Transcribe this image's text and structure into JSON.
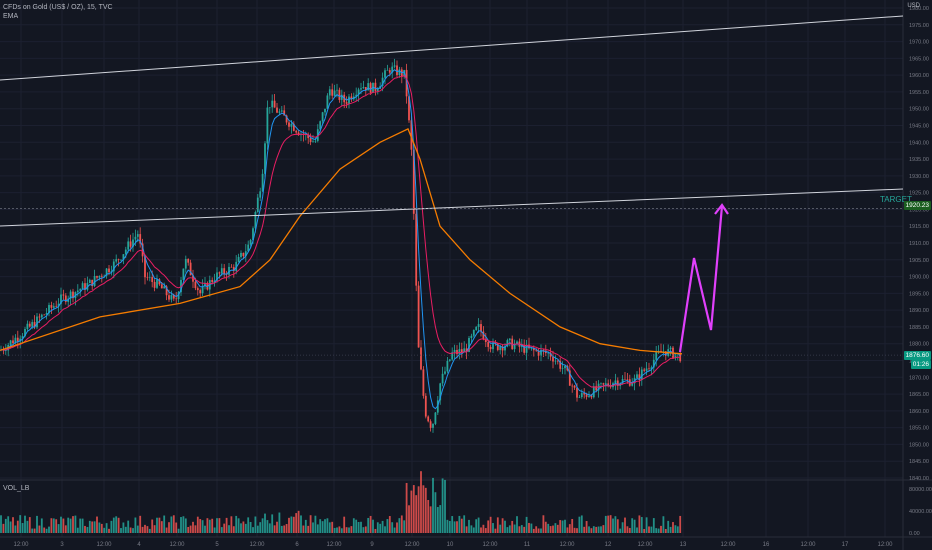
{
  "legend": {
    "symbol_line": "CFDs on Gold (US$ / OZ), 15, TVC",
    "indicator": "EMA",
    "volume_label": "VOL_LB"
  },
  "currency": "USD",
  "colors": {
    "background": "#131722",
    "up": "#26a69a",
    "down": "#ef5350",
    "ema_fast": "#2196f3",
    "ema_mid": "#e91e63",
    "ema_slow": "#f57c00",
    "projection": "#e040fb",
    "channel": "#d1d4dc",
    "target_tag": "#1b5e20",
    "last_price_tag": "#089981"
  },
  "target_label": "TARGET",
  "target_price": "1920.23",
  "last_price": "1876.60",
  "countdown": "01:26",
  "price_axis": [
    "1980.00",
    "1975.00",
    "1970.00",
    "1965.00",
    "1960.00",
    "1955.00",
    "1950.00",
    "1945.00",
    "1940.00",
    "1935.00",
    "1930.00",
    "1925.00",
    "1920.00",
    "1915.00",
    "1910.00",
    "1905.00",
    "1900.00",
    "1895.00",
    "1890.00",
    "1885.00",
    "1880.00",
    "1875.00",
    "1870.00",
    "1865.00",
    "1860.00",
    "1855.00",
    "1850.00",
    "1845.00",
    "1840.00"
  ],
  "volume_axis": [
    "80000.00",
    "40000.00",
    "0.00"
  ],
  "time_axis": [
    "12:00",
    "3",
    "12:00",
    "4",
    "12:00",
    "5",
    "12:00",
    "6",
    "12:00",
    "9",
    "12:00",
    "10",
    "12:00",
    "11",
    "12:00",
    "12",
    "12:00",
    "13",
    "12:00",
    "16",
    "12:00",
    "17",
    "12:00"
  ]
}
